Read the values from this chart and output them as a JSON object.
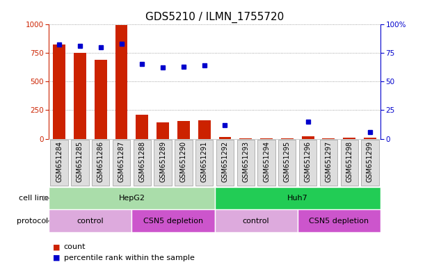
{
  "title": "GDS5210 / ILMN_1755720",
  "samples": [
    "GSM651284",
    "GSM651285",
    "GSM651286",
    "GSM651287",
    "GSM651288",
    "GSM651289",
    "GSM651290",
    "GSM651291",
    "GSM651292",
    "GSM651293",
    "GSM651294",
    "GSM651295",
    "GSM651296",
    "GSM651297",
    "GSM651298",
    "GSM651299"
  ],
  "counts": [
    820,
    750,
    690,
    990,
    210,
    145,
    155,
    160,
    18,
    2,
    3,
    5,
    22,
    3,
    10,
    8
  ],
  "percentile_ranks": [
    82,
    81,
    80,
    83,
    65,
    62,
    63,
    64,
    12,
    null,
    null,
    null,
    15,
    null,
    null,
    6
  ],
  "bar_color": "#cc2200",
  "dot_color": "#0000cc",
  "ylim_left": [
    0,
    1000
  ],
  "ylim_right": [
    0,
    100
  ],
  "yticks_left": [
    0,
    250,
    500,
    750,
    1000
  ],
  "yticks_right": [
    0,
    25,
    50,
    75,
    100
  ],
  "cell_line_groups": [
    {
      "label": "HepG2",
      "start": 0,
      "end": 8,
      "color": "#aaddaa"
    },
    {
      "label": "Huh7",
      "start": 8,
      "end": 16,
      "color": "#22cc55"
    }
  ],
  "protocol_groups": [
    {
      "label": "control",
      "start": 0,
      "end": 4,
      "color": "#ddaadd"
    },
    {
      "label": "CSN5 depletion",
      "start": 4,
      "end": 8,
      "color": "#cc55cc"
    },
    {
      "label": "control",
      "start": 8,
      "end": 12,
      "color": "#ddaadd"
    },
    {
      "label": "CSN5 depletion",
      "start": 12,
      "end": 16,
      "color": "#cc55cc"
    }
  ],
  "sample_box_color": "#dddddd",
  "sample_box_edge": "#999999",
  "legend_count_color": "#cc2200",
  "legend_dot_color": "#0000cc",
  "background_color": "#ffffff",
  "grid_color": "#888888",
  "title_fontsize": 11,
  "tick_fontsize": 7.5,
  "label_fontsize": 8,
  "sample_fontsize": 7
}
